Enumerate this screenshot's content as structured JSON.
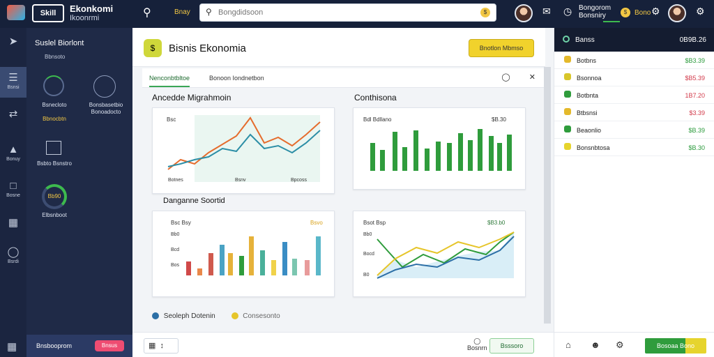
{
  "topbar": {
    "brand_mark": "Skill",
    "brand_title": "Ekonkomi",
    "brand_sub": "Ikoonrmi",
    "chip": "Bnay",
    "search_placeholder": "Bongdidsoon",
    "status_top": "Bongorom",
    "status_bottom": "Bonsniry",
    "count": "Bono"
  },
  "sidebar": {
    "items": [
      {
        "label": "",
        "icon": "rocket-icon"
      },
      {
        "label": "Bsnsi",
        "icon": "list-icon"
      },
      {
        "label": "",
        "icon": "shuffle-icon"
      },
      {
        "label": "Bonuy",
        "icon": "chart-icon"
      },
      {
        "label": "Bosne",
        "icon": "folder-icon"
      },
      {
        "label": "",
        "icon": "table-icon"
      },
      {
        "label": "Bsrdi",
        "icon": "circle-icon"
      }
    ]
  },
  "left_panel": {
    "title": "Suslel Biorlont",
    "subtitle": "Bbnsoto",
    "widget1_label": "Bsnecloto",
    "widget1_sub": "Bbnocbtn",
    "widget2_label": "Bonsbasetbio",
    "widget2_sub": "Bonoadocto",
    "widget3_label": "Bsbto Bsnstro",
    "widget4_value": "Bb90",
    "widget4_label": "Elbsnboot",
    "footer_label": "Bnsbooprom",
    "footer_pill": "Bnsus"
  },
  "main": {
    "title": "Bisnis Ekonomia",
    "header_button": "Bnotlon Mbmso",
    "tabs": [
      {
        "label": "Nenconbtbltoe"
      },
      {
        "label": "Bonoon Iondnetbon"
      }
    ],
    "section1_title": "Ancedde Migrahmoin",
    "section2_title": "Conthisona",
    "section3_title": "Danganne Soortid",
    "legend_left": "Seoleph Dotenin",
    "legend_right": "Consesonto",
    "footer_button": "Bsssoro",
    "footer_icon_label": "Bosnrn",
    "card1": {
      "leg": "Bsc",
      "foot1": "Botnes",
      "foot2": "Bsnv",
      "foot3": "Bpcoss"
    },
    "card2": {
      "leg": "Bdl Bdllano",
      "value": "$B.30"
    },
    "card3": {
      "leg": "Bsc Bsy",
      "value": "Bsvo",
      "y_labels": [
        "Bb0",
        "Bcd",
        "Bos"
      ]
    },
    "card4": {
      "leg": "Bsot Bsp",
      "value": "$B3.b0",
      "y_labels": [
        "Bb0",
        "Bocd",
        "B0"
      ]
    }
  },
  "right_panel": {
    "header_label": "Banss",
    "header_value": "0B9B.26",
    "rows": [
      {
        "name": "Botbns",
        "value": "$B3.39",
        "value_color": "#2b9a3c",
        "icon_color": "#e4b92b"
      },
      {
        "name": "Bsonnoa",
        "value": "$B5.39",
        "value_color": "#d23a4a",
        "icon_color": "#d8c62a"
      },
      {
        "name": "Botbnta",
        "value": "1B7.20",
        "value_color": "#d23a4a",
        "icon_color": "#2f9c3c"
      },
      {
        "name": "Btbsnsi",
        "value": "$3.39",
        "value_color": "#d23a4a",
        "icon_color": "#e4b92b"
      },
      {
        "name": "Beaonlio",
        "value": "$B.39",
        "value_color": "#2b9a3c",
        "icon_color": "#2f9c3c"
      },
      {
        "name": "Bonsnbtosa",
        "value": "$B.30",
        "value_color": "#2b9a3c",
        "icon_color": "#e6d42d"
      }
    ],
    "footer_button": "Bosoaa Bono"
  }
}
